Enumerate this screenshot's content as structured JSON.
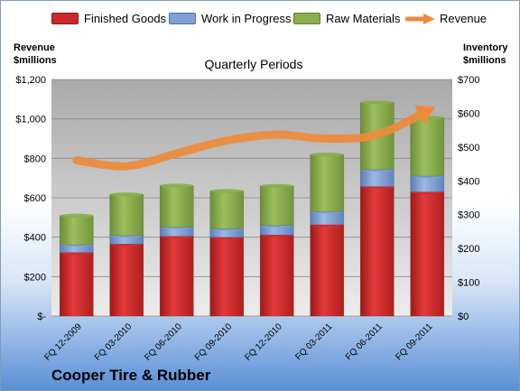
{
  "chart_data": {
    "type": "bar",
    "stacked": true,
    "title": "Quarterly Periods",
    "company": "Cooper Tire & Rubber",
    "ylabel_left": [
      "Revenue",
      "$millions"
    ],
    "ylabel_right": [
      "Inventory",
      "$millions"
    ],
    "y_left_ticks": [
      "$-",
      "$200",
      "$400",
      "$600",
      "$800",
      "$1,000",
      "$1,200"
    ],
    "y_right_ticks": [
      "$0",
      "$100",
      "$200",
      "$300",
      "$400",
      "$500",
      "$600",
      "$700"
    ],
    "ylim_left": [
      0,
      1200
    ],
    "ylim_right": [
      0,
      700
    ],
    "grid": true,
    "legend_position": "top",
    "categories": [
      "FQ 12-2009",
      "FQ 03-2010",
      "FQ 06-2010",
      "FQ 09-2010",
      "FQ 12-2010",
      "FQ 03-2011",
      "FQ 06-2011",
      "FQ 09-2011"
    ],
    "series": [
      {
        "name": "Finished Goods",
        "axis": "right",
        "color": "#d42b2b",
        "values": [
          188,
          213,
          236,
          233,
          240,
          270,
          383,
          367
        ]
      },
      {
        "name": "Work in Progress",
        "axis": "right",
        "color": "#7f9fd6",
        "values": [
          23,
          25,
          27,
          25,
          28,
          39,
          50,
          47
        ]
      },
      {
        "name": "Raw Materials",
        "axis": "right",
        "color": "#8aae4e",
        "values": [
          86,
          122,
          123,
          112,
          117,
          169,
          199,
          173
        ]
      },
      {
        "name": "Revenue",
        "axis": "left",
        "type": "line",
        "color": "#ed8b3b",
        "values": [
          790,
          760,
          825,
          890,
          920,
          900,
          920,
          1040
        ]
      }
    ]
  }
}
